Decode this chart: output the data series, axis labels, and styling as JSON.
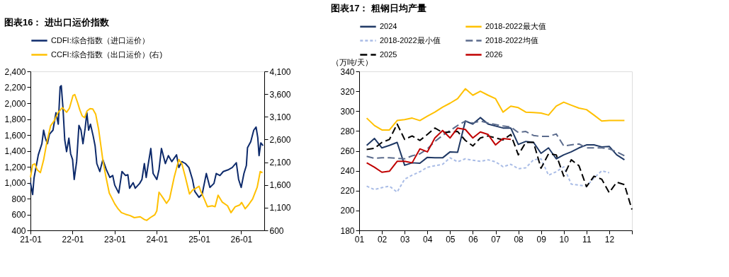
{
  "chart_data": [
    {
      "type": "line",
      "title": "图表16：  进出口运价指数",
      "legend": "top",
      "grid": false,
      "marker": "none",
      "xlim": [
        "2021-01-01",
        "2026-07-20"
      ],
      "xticks": [
        {
          "value": "2021-01",
          "label": "21-01"
        },
        {
          "value": "2022-01",
          "label": "22-01"
        },
        {
          "value": "2023-01",
          "label": "23-01"
        },
        {
          "value": "2024-01",
          "label": "24-01"
        },
        {
          "value": "2025-01",
          "label": "25-01"
        },
        {
          "value": "2026-01",
          "label": "26-01"
        }
      ],
      "ylim": [
        400,
        2400
      ],
      "yticks": [
        400,
        600,
        800,
        {
          "value": 1000,
          "label": "1,000"
        },
        {
          "value": 1200,
          "label": "1,200"
        },
        {
          "value": 1400,
          "label": "1,400"
        },
        {
          "value": 1600,
          "label": "1,600"
        },
        {
          "value": 1800,
          "label": "1,800"
        },
        {
          "value": 2000,
          "label": "2,000"
        },
        {
          "value": 2200,
          "label": "2,200"
        },
        {
          "value": 2400,
          "label": "2,400"
        }
      ],
      "y2lim": [
        600,
        4100
      ],
      "y2ticks": [
        600,
        {
          "value": 1100,
          "label": "1,100"
        },
        {
          "value": 1600,
          "label": "1,600"
        },
        {
          "value": 2100,
          "label": "2,100"
        },
        {
          "value": 2600,
          "label": "2,600"
        },
        {
          "value": 3100,
          "label": "3,100"
        },
        {
          "value": 3600,
          "label": "3,600"
        },
        {
          "value": 4100,
          "label": "4,100"
        }
      ],
      "series": [
        {
          "name": "CDFI:综合指数（进口运价）",
          "color": "#0d2a6b",
          "line_style": "solid",
          "x": [
            "2021-01-01",
            "2021-01-20",
            "2021-02-01",
            "2021-03-10",
            "2021-04-10",
            "2021-04-25",
            "2021-05-10",
            "2021-05-28",
            "2021-06-15",
            "2021-07-15",
            "2021-08-10",
            "2021-08-30",
            "2021-09-15",
            "2021-09-25",
            "2021-10-10",
            "2021-10-25",
            "2021-11-10",
            "2021-11-30",
            "2021-12-15",
            "2022-01-01",
            "2022-01-15",
            "2022-02-05",
            "2022-02-25",
            "2022-03-15",
            "2022-04-01",
            "2022-04-20",
            "2022-05-05",
            "2022-05-20",
            "2022-06-05",
            "2022-06-28",
            "2022-07-15",
            "2022-07-30",
            "2022-08-25",
            "2022-09-20",
            "2022-10-20",
            "2022-11-20",
            "2022-12-15",
            "2023-01-01",
            "2023-02-05",
            "2023-03-05",
            "2023-04-05",
            "2023-04-25",
            "2023-05-10",
            "2023-06-10",
            "2023-06-28",
            "2023-08-05",
            "2023-08-25",
            "2023-09-15",
            "2023-10-01",
            "2023-10-15",
            "2023-11-10",
            "2023-11-30",
            "2024-01-01",
            "2024-01-20",
            "2024-02-10",
            "2024-03-15",
            "2024-04-10",
            "2024-05-10",
            "2024-06-20",
            "2024-07-10",
            "2024-08-05",
            "2024-09-05",
            "2024-10-05",
            "2024-11-05",
            "2024-11-25",
            "2025-01-01",
            "2025-01-28",
            "2025-03-05",
            "2025-04-05",
            "2025-05-10",
            "2025-05-30",
            "2025-07-01",
            "2025-07-30",
            "2025-09-15",
            "2025-10-15",
            "2025-11-20",
            "2025-12-10",
            "2026-01-01",
            "2026-01-25",
            "2026-02-15",
            "2026-02-25",
            "2026-03-25",
            "2026-04-20",
            "2026-05-10",
            "2026-05-25",
            "2026-06-05",
            "2026-06-20",
            "2026-07-10"
          ],
          "values": [
            1000,
            850,
            1060,
            1350,
            1490,
            1660,
            1560,
            1490,
            1610,
            1660,
            1880,
            1735,
            2205,
            2220,
            1935,
            1540,
            1390,
            1560,
            1365,
            1290,
            1040,
            1265,
            1720,
            1660,
            1490,
            1685,
            1880,
            1660,
            1735,
            1590,
            1465,
            1240,
            1140,
            1290,
            1165,
            1065,
            1090,
            970,
            870,
            1140,
            1090,
            1100,
            930,
            1000,
            930,
            990,
            1040,
            1240,
            1065,
            1200,
            1430,
            1115,
            1040,
            1165,
            1430,
            1240,
            1340,
            1265,
            1350,
            1190,
            1265,
            1240,
            1190,
            1040,
            890,
            815,
            855,
            1115,
            940,
            990,
            1115,
            1090,
            1140,
            1165,
            1190,
            1250,
            1040,
            940,
            1115,
            1215,
            1440,
            1515,
            1660,
            1700,
            1565,
            1340,
            1500,
            1465
          ]
        },
        {
          "name": "CCFI:综合指数（出口运价）(右)",
          "color": "#ffc000",
          "axis": "y2",
          "line_style": "solid",
          "x": [
            "2021-01-01",
            "2021-01-20",
            "2021-02-08",
            "2021-02-28",
            "2021-03-28",
            "2021-04-25",
            "2021-05-25",
            "2021-06-25",
            "2021-07-25",
            "2021-08-30",
            "2021-10-05",
            "2021-11-10",
            "2021-12-05",
            "2022-01-05",
            "2022-01-20",
            "2022-02-15",
            "2022-03-05",
            "2022-03-25",
            "2022-04-15",
            "2022-05-05",
            "2022-06-01",
            "2022-06-25",
            "2022-07-20",
            "2022-08-15",
            "2022-09-05",
            "2022-09-20",
            "2022-10-15",
            "2022-11-15",
            "2023-01-01",
            "2023-01-30",
            "2023-02-28",
            "2023-04-05",
            "2023-05-15",
            "2023-06-20",
            "2023-08-10",
            "2023-09-15",
            "2023-10-05",
            "2023-11-05",
            "2023-12-15",
            "2024-01-01",
            "2024-01-20",
            "2024-02-25",
            "2024-03-25",
            "2024-04-20",
            "2024-05-30",
            "2024-07-10",
            "2024-08-05",
            "2024-09-05",
            "2024-10-10",
            "2024-11-05",
            "2024-12-20",
            "2025-01-01",
            "2025-01-15",
            "2025-02-15",
            "2025-03-15",
            "2025-04-25",
            "2025-05-20",
            "2025-06-15",
            "2025-07-20",
            "2025-09-05",
            "2025-10-05",
            "2025-11-10",
            "2025-12-20",
            "2026-01-05",
            "2026-02-05",
            "2026-03-05",
            "2026-04-10",
            "2026-05-20",
            "2026-06-15",
            "2026-07-05"
          ],
          "values": [
            1765,
            2045,
            2065,
            1935,
            1870,
            2150,
            2565,
            2905,
            3010,
            3200,
            3300,
            3200,
            3290,
            3570,
            3590,
            3400,
            3250,
            3120,
            3080,
            3225,
            3280,
            3270,
            3160,
            2820,
            2430,
            2150,
            1805,
            1420,
            1185,
            1075,
            990,
            955,
            925,
            880,
            900,
            840,
            820,
            880,
            945,
            1030,
            1440,
            1310,
            1195,
            1290,
            1765,
            2160,
            2065,
            1765,
            1400,
            1485,
            1550,
            1570,
            1465,
            1290,
            1120,
            1140,
            1120,
            1375,
            1225,
            1140,
            990,
            1120,
            1160,
            1215,
            1075,
            1160,
            1290,
            1550,
            1895,
            1870
          ]
        }
      ]
    },
    {
      "type": "line",
      "title": "图表17：  粗钢日均产量",
      "ylabel": "（万吨/天）",
      "legend": "top",
      "grid": false,
      "marker": "none",
      "xlim": [
        1,
        13
      ],
      "xticks": [
        {
          "value": 1,
          "label": "01"
        },
        {
          "value": 2,
          "label": "02"
        },
        {
          "value": 3,
          "label": "03"
        },
        {
          "value": 4,
          "label": "04"
        },
        {
          "value": 5,
          "label": "05"
        },
        {
          "value": 6,
          "label": "06"
        },
        {
          "value": 7,
          "label": "07"
        },
        {
          "value": 8,
          "label": "08"
        },
        {
          "value": 9,
          "label": "09"
        },
        {
          "value": 10,
          "label": "10"
        },
        {
          "value": 11,
          "label": "11"
        },
        {
          "value": 12,
          "label": "12"
        },
        {
          "value": 13,
          "label": null
        }
      ],
      "ylim": [
        180,
        340
      ],
      "yticks": [
        180,
        200,
        220,
        240,
        260,
        280,
        300,
        320,
        340
      ],
      "series": [
        {
          "name": "2024",
          "color": "#1f3864",
          "line_style": "solid",
          "x": [
            1.33,
            1.67,
            2,
            2.33,
            2.67,
            3,
            3.33,
            3.67,
            4,
            4.33,
            4.67,
            5,
            5.33,
            5.67,
            6,
            6.33,
            6.67,
            7,
            7.33,
            7.67,
            8,
            8.33,
            8.67,
            9,
            9.33,
            9.67,
            10,
            10.33,
            10.67,
            11,
            11.33,
            11.67,
            12,
            12.33,
            12.67
          ],
          "values": [
            265.5,
            272.5,
            263,
            265.5,
            268.5,
            245.5,
            248,
            247.5,
            253.5,
            253,
            253,
            259,
            258.5,
            290,
            287,
            293.5,
            287,
            285,
            283,
            283,
            266.5,
            269.5,
            268.5,
            257.5,
            263,
            252,
            256,
            259,
            263,
            266,
            266,
            264,
            264.5,
            256,
            251
          ]
        },
        {
          "name": "2018-2022最大值",
          "color": "#ffc000",
          "line_style": "solid",
          "x": [
            1.33,
            1.67,
            2,
            2.33,
            2.67,
            3,
            3.33,
            3.67,
            4,
            4.33,
            4.67,
            5,
            5.33,
            5.67,
            6,
            6.33,
            6.67,
            7,
            7.33,
            7.67,
            8,
            8.33,
            8.67,
            9,
            9.33,
            9.67,
            10,
            10.33,
            10.67,
            11,
            11.33,
            11.67,
            12,
            12.33,
            12.67
          ],
          "values": [
            293,
            285.5,
            281,
            281,
            290.5,
            291.5,
            293,
            290.5,
            295,
            299,
            304,
            308,
            312.5,
            322.5,
            316,
            320,
            316,
            312.5,
            299,
            305,
            303.5,
            299,
            298.5,
            298,
            296,
            305,
            309,
            306,
            303,
            301.5,
            296,
            290,
            290.5,
            290.5,
            290.5
          ]
        },
        {
          "name": "2018-2022最小值",
          "color": "#a9bce6",
          "line_style": "dotted",
          "x": [
            1.33,
            1.67,
            2,
            2.33,
            2.67,
            3,
            3.33,
            3.67,
            4,
            4.33,
            4.67,
            5,
            5.33,
            5.67,
            6,
            6.33,
            6.67,
            7,
            7.33,
            7.67,
            8,
            8.33,
            8.67,
            9,
            9.33,
            9.67,
            10,
            10.33,
            10.67,
            11,
            11.33,
            11.67,
            12
          ],
          "values": [
            224.5,
            221,
            223,
            224.5,
            218.5,
            231.5,
            235.5,
            239,
            243.5,
            245,
            246.5,
            253,
            249,
            252,
            250.5,
            249.5,
            251,
            249,
            244,
            246.5,
            242,
            243,
            251,
            252,
            235.5,
            239,
            244,
            226.5,
            225.5,
            224.5,
            232.5,
            240,
            238
          ]
        },
        {
          "name": "2018-2022均值",
          "color": "#5b6b8c",
          "line_style": "dashed",
          "x": [
            1.33,
            1.67,
            2,
            2.33,
            2.67,
            3,
            3.33,
            3.67,
            4,
            4.33,
            4.67,
            5,
            5.33,
            5.67,
            6,
            6.33,
            6.67,
            7,
            7.33,
            7.67,
            8,
            8.33,
            8.67,
            9,
            9.33,
            9.67,
            10,
            10.33,
            10.67,
            11,
            11.33,
            11.67,
            12,
            12.33,
            12.67
          ],
          "values": [
            254.5,
            252.5,
            253,
            253,
            252.5,
            252,
            255,
            257,
            262,
            269.5,
            275.5,
            280.5,
            285.5,
            290,
            288,
            290,
            288,
            286.5,
            285,
            284,
            278.5,
            279.5,
            275.5,
            274.5,
            274.5,
            277,
            265,
            266,
            267,
            263,
            263,
            263,
            262,
            259,
            255
          ]
        },
        {
          "name": "2025",
          "color": "#000000",
          "line_style": "dashed",
          "x": [
            1.33,
            1.67,
            2,
            2.33,
            2.67,
            3,
            3.33,
            3.67,
            4,
            4.33,
            4.67,
            5,
            5.33,
            5.67,
            6,
            6.33,
            6.67,
            7,
            7.33,
            7.67,
            8,
            8.33,
            8.67,
            9,
            9.33,
            9.67,
            10,
            10.33,
            10.67,
            11,
            11.33,
            11.67,
            12,
            12.33,
            12.67,
            13
          ],
          "values": [
            261.5,
            262.5,
            268.5,
            271.5,
            287,
            271.5,
            275,
            270.5,
            276.5,
            283,
            278.5,
            279,
            279.5,
            270.5,
            265,
            273,
            275,
            273,
            271,
            276.5,
            256,
            268.5,
            268.5,
            242.5,
            257,
            256,
            234.5,
            251,
            245,
            224,
            234.5,
            231.5,
            218,
            228.5,
            226,
            201
          ]
        },
        {
          "name": "2026",
          "color": "#c00000",
          "line_style": "solid",
          "x": [
            1.33,
            1.67,
            2,
            2.33,
            2.67,
            3,
            3.33,
            3.67,
            4,
            4.33,
            4.67,
            5,
            5.33,
            5.67,
            6,
            6.33,
            6.67,
            7,
            7.33,
            7.67
          ],
          "values": [
            248,
            243.5,
            238.5,
            239.5,
            249.5,
            249.5,
            248,
            262,
            259,
            273,
            280.5,
            273,
            283,
            281.5,
            273,
            279,
            276.5,
            266,
            272.5,
            271.5
          ]
        }
      ]
    }
  ]
}
